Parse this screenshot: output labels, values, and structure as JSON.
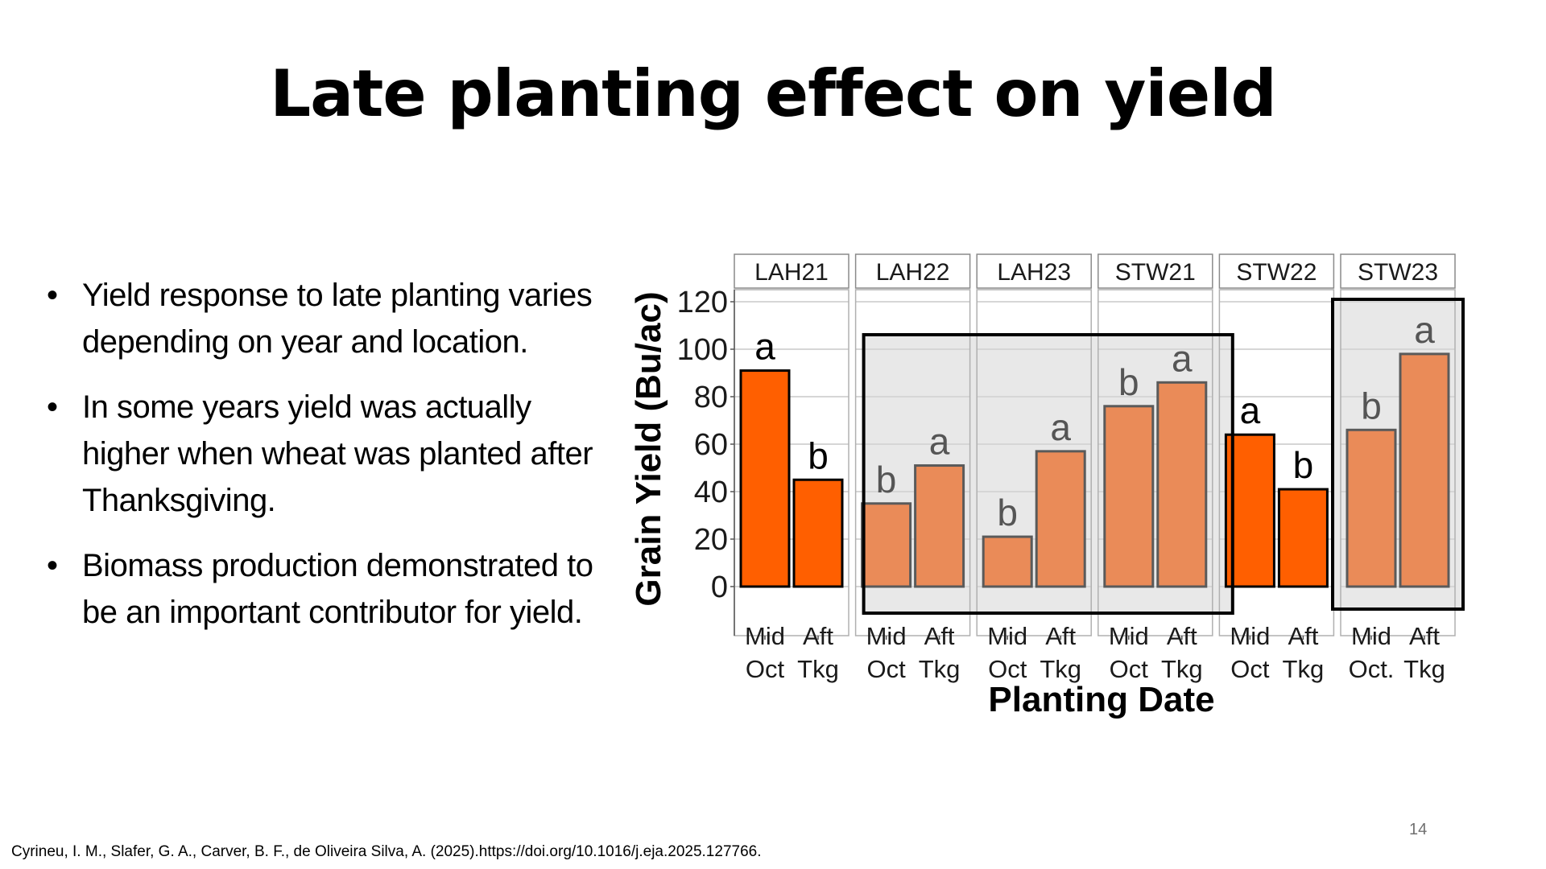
{
  "slide": {
    "title": "Late planting effect on yield",
    "bullets": [
      "Yield response to late planting varies depending on year and location.",
      "In some years yield was actually higher when wheat was planted after Thanksgiving.",
      "Biomass production demonstrated to be an important contributor for yield."
    ],
    "bullet_glyph": "•",
    "citation": "Cyrineu, I. M., Slafer, G. A., Carver, B. F., de Oliveira Silva, A. (2025).https://doi.org/10.1016/j.eja.2025.127766.",
    "page_number": "14"
  },
  "chart_data": {
    "type": "bar",
    "title": "",
    "xlabel": "Planting Date",
    "ylabel": "Grain Yield (Bu/ac)",
    "ylim": [
      0,
      120
    ],
    "yticks": [
      0,
      20,
      40,
      60,
      80,
      100,
      120
    ],
    "grid": true,
    "colors": {
      "early_effect": "#ff5f00",
      "late_effect": "#ea8b58",
      "highlight_bg": "#e8e8e8",
      "dark_label": "#000000",
      "grey_label": "#555555"
    },
    "panels": [
      {
        "name": "LAH21",
        "categories": [
          "Mid\nOct",
          "Aft\nTkg"
        ],
        "values": [
          91,
          45
        ],
        "letters": [
          "a",
          "b"
        ],
        "highlighted": false
      },
      {
        "name": "LAH22",
        "categories": [
          "Mid\nOct",
          "Aft\nTkg"
        ],
        "values": [
          35,
          51
        ],
        "letters": [
          "b",
          "a"
        ],
        "highlighted": true
      },
      {
        "name": "LAH23",
        "categories": [
          "Mid\nOct",
          "Aft\nTkg"
        ],
        "values": [
          21,
          57
        ],
        "letters": [
          "b",
          "a"
        ],
        "highlighted": true
      },
      {
        "name": "STW21",
        "categories": [
          "Mid\nOct",
          "Aft\nTkg"
        ],
        "values": [
          76,
          86
        ],
        "letters": [
          "b",
          "a"
        ],
        "highlighted": true
      },
      {
        "name": "STW22",
        "categories": [
          "Mid\nOct",
          "Aft\nTkg"
        ],
        "values": [
          64,
          41
        ],
        "letters": [
          "a",
          "b"
        ],
        "highlighted": false
      },
      {
        "name": "STW23",
        "categories": [
          "Mid\nOct.",
          "Aft\nTkg"
        ],
        "values": [
          66,
          98
        ],
        "letters": [
          "b",
          "a"
        ],
        "highlighted": true
      }
    ],
    "highlight_groups": [
      [
        "LAH22",
        "LAH23",
        "STW21"
      ],
      [
        "STW23"
      ]
    ]
  }
}
